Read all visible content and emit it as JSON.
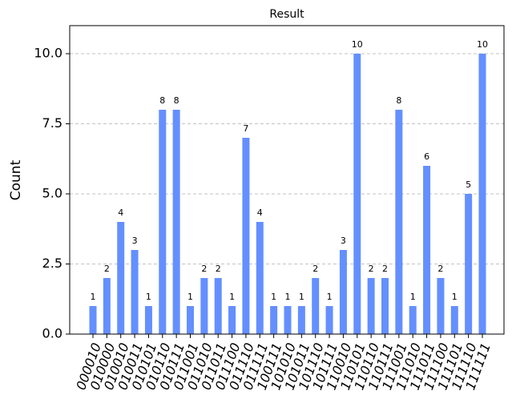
{
  "chart_data": {
    "type": "bar",
    "title": "Result",
    "y_label": "Count",
    "categories": [
      "000010",
      "010000",
      "010010",
      "010011",
      "010101",
      "010110",
      "010111",
      "011001",
      "011010",
      "011011",
      "011100",
      "011110",
      "011111",
      "100111",
      "101010",
      "101011",
      "101110",
      "101111",
      "110010",
      "110101",
      "110110",
      "110111",
      "111001",
      "111010",
      "111011",
      "111100",
      "111101",
      "111110",
      "111111"
    ],
    "values": [
      1,
      2,
      4,
      3,
      1,
      8,
      8,
      1,
      2,
      2,
      1,
      7,
      4,
      1,
      1,
      1,
      2,
      1,
      3,
      10,
      2,
      2,
      8,
      1,
      6,
      2,
      1,
      5,
      10
    ],
    "color": "#648fff",
    "ylim": [
      0,
      11
    ],
    "yticks": [
      {
        "value": 0,
        "label": "0.0"
      },
      {
        "value": 2.5,
        "label": "2.5"
      },
      {
        "value": 5,
        "label": "5.0"
      },
      {
        "value": 7.5,
        "label": "7.5"
      },
      {
        "value": 10,
        "label": "10.0"
      }
    ],
    "grid": true
  }
}
